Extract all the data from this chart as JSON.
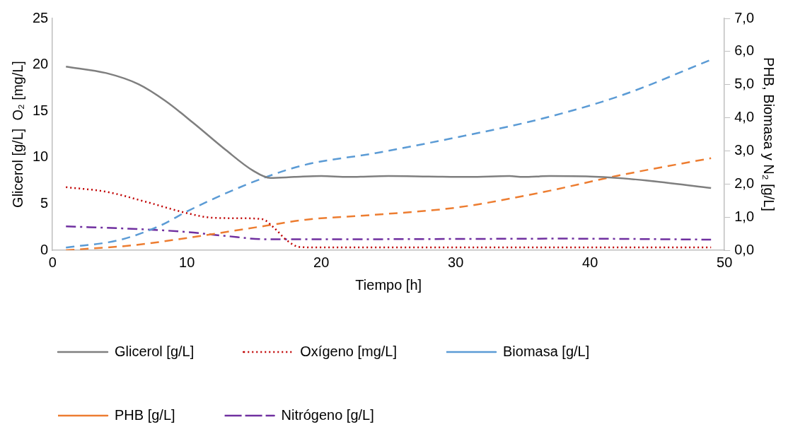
{
  "chart_data": {
    "type": "line",
    "xlabel": "Tiempo [h]",
    "ylabel": "Glicerol [g/L]  O₂ [mg/L]",
    "y2label": "PHB, Biomasa y N₂ [g/L]",
    "xlim": [
      0,
      50
    ],
    "xticks": [
      0,
      10,
      20,
      30,
      40,
      50
    ],
    "ylim": [
      0,
      25
    ],
    "yticks": [
      0,
      5,
      10,
      15,
      20,
      25
    ],
    "y2lim": [
      0,
      7
    ],
    "y2ticks": [
      {
        "value": 0,
        "label": "0,0"
      },
      {
        "value": 1,
        "label": "1,0"
      },
      {
        "value": 2,
        "label": "2,0"
      },
      {
        "value": 3,
        "label": "3,0"
      },
      {
        "value": 4,
        "label": "4,0"
      },
      {
        "value": 5,
        "label": "5,0"
      },
      {
        "value": 6,
        "label": "6,0"
      },
      {
        "value": 7,
        "label": "7,0"
      }
    ],
    "grid": false,
    "legend": "bottom",
    "marker": "none",
    "series": [
      {
        "name": "Glicerol [g/L]",
        "color": "#7f7f7f",
        "line_style": "solid",
        "x": [
          1,
          4,
          6.4,
          8.4,
          10.5,
          12.9,
          14.9,
          16.2,
          18,
          20,
          22,
          25,
          28,
          31,
          34,
          35,
          37,
          40,
          42,
          45,
          49
        ],
        "values": [
          19.8,
          19.1,
          17.9,
          16.1,
          13.7,
          10.8,
          8.6,
          7.8,
          7.9,
          8.0,
          7.9,
          8.0,
          7.95,
          7.9,
          8.0,
          7.9,
          8.0,
          7.95,
          7.8,
          7.4,
          6.7
        ]
      },
      {
        "name": "Oxígeno [mg/L]",
        "color": "#c00000",
        "line_style": "dotted",
        "x": [
          1,
          4,
          7,
          10,
          11.9,
          13.9,
          15.6,
          16.5,
          17.4,
          18.4,
          20,
          30,
          40,
          49
        ],
        "values": [
          6.8,
          6.3,
          5.2,
          4.0,
          3.5,
          3.45,
          3.35,
          2.4,
          1.1,
          0.35,
          0.3,
          0.3,
          0.3,
          0.3
        ]
      },
      {
        "name": "Biomasa [g/L]",
        "color": "#5b9bd5",
        "line_style": "dashed",
        "axis": "y2",
        "x": [
          1,
          5,
          8,
          10,
          12.9,
          15.9,
          18.8,
          24,
          30.1,
          36.2,
          42.3,
          49
        ],
        "values": [
          0.08,
          0.31,
          0.74,
          1.17,
          1.72,
          2.21,
          2.58,
          2.93,
          3.41,
          3.95,
          4.67,
          5.75
        ]
      },
      {
        "name": "PHB [g/L]",
        "color": "#ed7d31",
        "line_style": "dashed",
        "axis": "y2",
        "x": [
          1,
          6,
          10,
          12.9,
          15.9,
          18.8,
          24,
          30.1,
          36.2,
          42.3,
          49
        ],
        "values": [
          0.0,
          0.15,
          0.37,
          0.55,
          0.74,
          0.92,
          1.07,
          1.29,
          1.73,
          2.27,
          2.78
        ]
      },
      {
        "name": "Nitrógeno [g/L]",
        "color": "#7030a0",
        "line_style": "dashdot",
        "axis": "y2",
        "x": [
          1,
          6.3,
          10,
          12.9,
          15.9,
          20,
          30,
          38,
          49
        ],
        "values": [
          0.72,
          0.64,
          0.55,
          0.43,
          0.33,
          0.33,
          0.34,
          0.35,
          0.32
        ]
      }
    ]
  }
}
